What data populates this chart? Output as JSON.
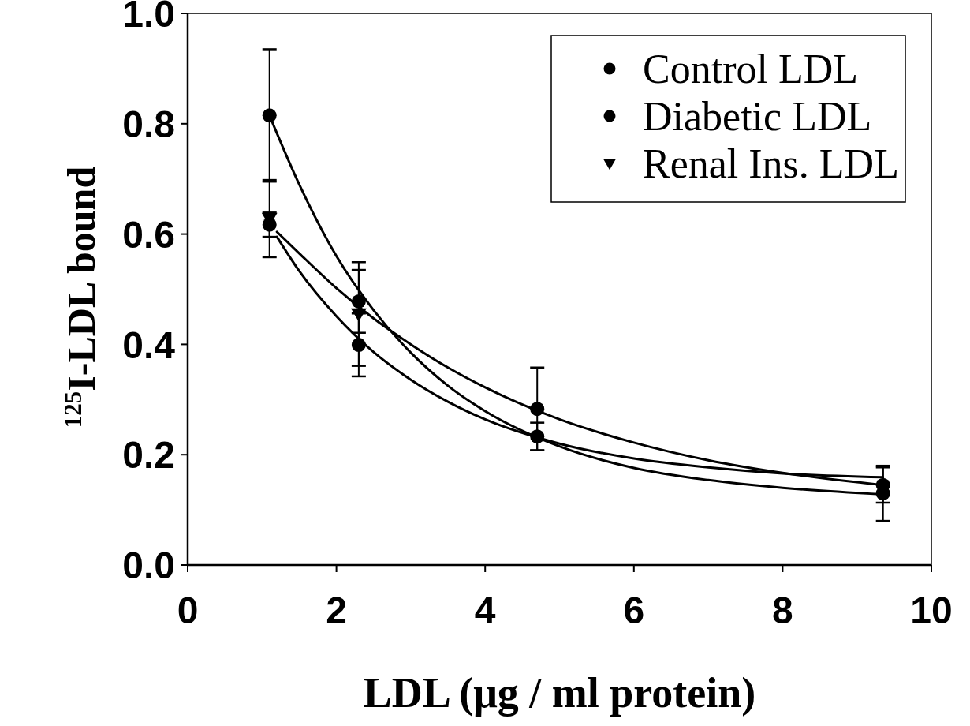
{
  "chart_data": {
    "type": "scatter",
    "xlabel": "LDL (μg / ml protein)",
    "ylabel": "$^{125}$I-LDL bound",
    "xlim": [
      0,
      10
    ],
    "ylim": [
      0,
      1
    ],
    "xticks": [
      0,
      2,
      4,
      6,
      8,
      10
    ],
    "yticks": [
      {
        "value": 0,
        "label": "0.0"
      },
      {
        "value": 0.2,
        "label": "0.2"
      },
      {
        "value": 0.4,
        "label": "0.4"
      },
      {
        "value": 0.6,
        "label": "0.6"
      },
      {
        "value": 0.8,
        "label": "0.8"
      },
      {
        "value": 1,
        "label": "1.0"
      }
    ],
    "legend": "top right",
    "series": [
      {
        "name": "Control LDL",
        "marker": "circle",
        "color": "#000000",
        "x": [
          1.1,
          2.3,
          4.7,
          9.35
        ],
        "values": [
          0.815,
          0.478,
          0.283,
          0.13
        ],
        "errors": [
          0.12,
          0.057,
          0.075,
          0.05
        ]
      },
      {
        "name": "Diabetic LDL",
        "marker": "circle",
        "color": "#000000",
        "x": [
          1.1,
          2.3,
          4.7,
          9.35
        ],
        "values": [
          0.617,
          0.399,
          0.233,
          0.145
        ],
        "errors": [
          0.022,
          0.057,
          0.025,
          0.032
        ]
      },
      {
        "name": "Renal Ins. LDL",
        "marker": "triangle",
        "color": "#000000",
        "x": [
          1.1,
          2.3
        ],
        "values": [
          0.628,
          0.455
        ],
        "errors": [
          0.07,
          0.094
        ]
      },
      {
        "type": "line",
        "color": "#000000",
        "x": [
          1.1,
          1.5,
          2,
          2.5,
          3,
          3.5,
          4,
          5,
          6,
          7,
          8,
          9.35
        ],
        "values": [
          0.815,
          0.69,
          0.56,
          0.462,
          0.385,
          0.325,
          0.279,
          0.215,
          0.176,
          0.154,
          0.14,
          0.128
        ]
      },
      {
        "type": "line",
        "color": "#000000",
        "x": [
          1.2,
          1.5,
          2,
          2.5,
          3,
          3.5,
          4,
          5,
          6,
          7,
          8,
          9.35
        ],
        "values": [
          0.595,
          0.533,
          0.451,
          0.386,
          0.336,
          0.296,
          0.264,
          0.22,
          0.193,
          0.177,
          0.166,
          0.159
        ]
      },
      {
        "type": "line",
        "color": "#000000",
        "x": [
          1.2,
          1.5,
          2,
          2.5,
          3,
          3.5,
          4,
          5,
          6,
          7,
          8,
          9.35
        ],
        "values": [
          0.604,
          0.565,
          0.502,
          0.447,
          0.4,
          0.358,
          0.322,
          0.264,
          0.222,
          0.19,
          0.167,
          0.145
        ]
      }
    ]
  }
}
